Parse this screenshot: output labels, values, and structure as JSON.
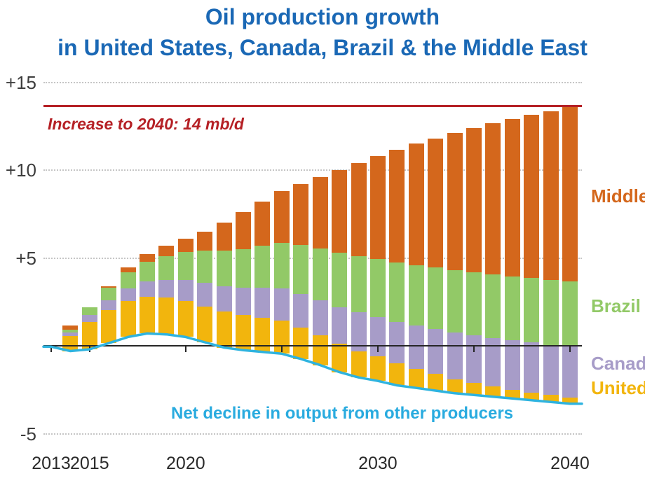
{
  "title": {
    "line1": "Oil production growth",
    "line2": "in United States, Canada, Brazil & the Middle East"
  },
  "annotations": {
    "increase_label": "Increase to 2040: 14 mb/d",
    "net_decline_label": "Net decline in output from other producers"
  },
  "y_axis": {
    "ticks": [
      {
        "label": "+15",
        "value": 15
      },
      {
        "label": "+10",
        "value": 10
      },
      {
        "label": "+5",
        "value": 5
      },
      {
        "label": "-5",
        "value": -5
      }
    ]
  },
  "x_axis": {
    "ticks": [
      {
        "label": "2013",
        "year": 2013
      },
      {
        "label": "2015",
        "year": 2015
      },
      {
        "label": "2020",
        "year": 2020
      },
      {
        "label": "",
        "year": 2025
      },
      {
        "label": "2030",
        "year": 2030
      },
      {
        "label": "",
        "year": 2035
      },
      {
        "label": "2040",
        "year": 2040
      }
    ]
  },
  "legend": [
    {
      "label": "Middle East",
      "color": "#D4671C"
    },
    {
      "label": "Brazil",
      "color": "#92C967"
    },
    {
      "label": "Canada",
      "color": "#A79CC8"
    },
    {
      "label": "United States",
      "color": "#F2B50D"
    }
  ],
  "colors": {
    "title_blue": "#1A68B5",
    "reference_red": "#B52025",
    "net_decline_cyan": "#2EB3DF",
    "middle_east": "#D4671C",
    "brazil": "#92C967",
    "canada": "#A79CC8",
    "united_states": "#F2B50D",
    "axis": "#262626",
    "gridline": "#C6C6C6"
  },
  "chart_data": {
    "type": "bar",
    "stacked": true,
    "title": "Oil production growth in United States, Canada, Brazil & the Middle East",
    "unit": "mb/d",
    "ylim": [
      -5,
      15
    ],
    "grid": "dotted horizontal at +15, +10, +5, -5",
    "legend_position": "right, color-coded text",
    "note": "Stacked bars sit on the net-decline line (bar base = net decline of other producers); bar top = net increase vs 2013",
    "years": [
      2014,
      2015,
      2016,
      2017,
      2018,
      2019,
      2020,
      2021,
      2022,
      2023,
      2024,
      2025,
      2026,
      2027,
      2028,
      2029,
      2030,
      2031,
      2032,
      2033,
      2034,
      2035,
      2036,
      2037,
      2038,
      2039,
      2040
    ],
    "series": [
      {
        "name": "United States",
        "color": "#F2B50D",
        "values": [
          0.85,
          1.55,
          1.9,
          2.05,
          2.1,
          2.1,
          2.05,
          2.05,
          2.05,
          2.0,
          1.95,
          1.9,
          1.8,
          1.7,
          1.6,
          1.5,
          1.4,
          1.25,
          1.1,
          0.95,
          0.8,
          0.7,
          0.6,
          0.5,
          0.45,
          0.4,
          0.35
        ]
      },
      {
        "name": "Canada",
        "color": "#A79CC8",
        "values": [
          0.2,
          0.4,
          0.55,
          0.7,
          0.85,
          1.0,
          1.2,
          1.35,
          1.45,
          1.55,
          1.7,
          1.8,
          1.9,
          2.0,
          2.1,
          2.2,
          2.25,
          2.35,
          2.45,
          2.55,
          2.65,
          2.7,
          2.75,
          2.8,
          2.85,
          2.85,
          2.9
        ]
      },
      {
        "name": "Brazil",
        "color": "#92C967",
        "values": [
          0.15,
          0.45,
          0.7,
          0.95,
          1.15,
          1.35,
          1.6,
          1.8,
          2.0,
          2.2,
          2.4,
          2.6,
          2.8,
          2.95,
          3.1,
          3.2,
          3.3,
          3.4,
          3.45,
          3.5,
          3.55,
          3.6,
          3.6,
          3.65,
          3.65,
          3.7,
          3.7
        ]
      },
      {
        "name": "Middle East",
        "color": "#D4671C",
        "values": [
          0.25,
          0.0,
          0.1,
          0.25,
          0.4,
          0.6,
          0.75,
          1.1,
          1.6,
          2.1,
          2.5,
          2.95,
          3.45,
          4.05,
          4.7,
          5.3,
          5.85,
          6.4,
          6.9,
          7.35,
          7.8,
          8.2,
          8.6,
          8.95,
          9.3,
          9.6,
          9.95
        ]
      }
    ],
    "net_decline_line": {
      "name": "Net decline in output from other producers",
      "color": "#2EB3DF",
      "years": [
        2013,
        2014,
        2015,
        2016,
        2017,
        2018,
        2019,
        2020,
        2021,
        2022,
        2023,
        2024,
        2025,
        2026,
        2027,
        2028,
        2029,
        2030,
        2031,
        2032,
        2033,
        2034,
        2035,
        2036,
        2037,
        2038,
        2039,
        2040
      ],
      "values": [
        -0.05,
        -0.3,
        -0.2,
        0.15,
        0.5,
        0.7,
        0.65,
        0.5,
        0.2,
        -0.1,
        -0.25,
        -0.35,
        -0.45,
        -0.75,
        -1.1,
        -1.5,
        -1.8,
        -2.0,
        -2.25,
        -2.4,
        -2.55,
        -2.7,
        -2.8,
        -2.9,
        -3.0,
        -3.1,
        -3.2,
        -3.3
      ]
    },
    "reference_line": {
      "label": "Increase to 2040: 14 mb/d",
      "value": 14,
      "position_value": 13.65,
      "color": "#B52025"
    }
  }
}
